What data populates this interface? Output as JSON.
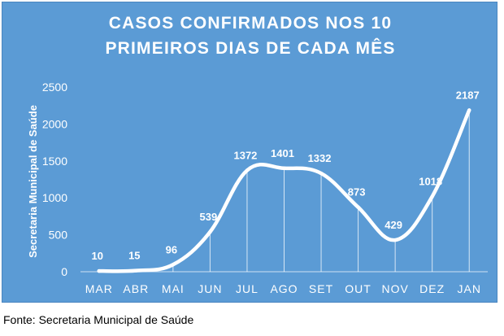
{
  "chart_data": {
    "type": "line",
    "title_lines": [
      "CASOS CONFIRMADOS NOS 10",
      "PRIMEIROS DIAS DE CADA MÊS"
    ],
    "ylabel": "Secretaria Municipal de Saúde",
    "categories": [
      "MAR",
      "ABR",
      "MAI",
      "JUN",
      "JUL",
      "AGO",
      "SET",
      "OUT",
      "NOV",
      "DEZ",
      "JAN"
    ],
    "series": [
      {
        "values": [
          10,
          15,
          96,
          539,
          1372,
          1401,
          1332,
          873,
          429,
          1018,
          2187
        ]
      }
    ],
    "ylim": [
      0,
      2500
    ],
    "yticks": [
      0,
      500,
      1000,
      1500,
      2000,
      2500
    ],
    "data_labels": true,
    "drop_lines": true,
    "grid": false,
    "colors": {
      "background": "#5b9bd5",
      "line": "#ffffff",
      "text": "#ffffff"
    }
  },
  "footer": {
    "source": "Fonte: Secretaria Municipal de Saúde"
  }
}
